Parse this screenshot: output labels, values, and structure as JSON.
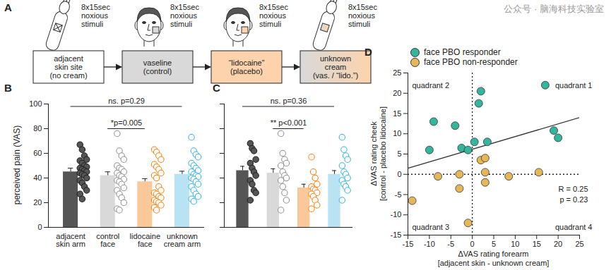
{
  "watermark": "公众号 · 脑海科技实验室",
  "diagram": {
    "panel": "A",
    "steps": [
      {
        "stimulus": "8x15sec\nnoxious\nstimuli",
        "label": "adjacent\nskin site\n(no cream)",
        "icon": "arm",
        "color": "#ffffff"
      },
      {
        "stimulus": "8x15sec\nnoxious\nstimuli",
        "label": "vaseline\n(control)",
        "icon": "face",
        "color": "#d9d9d9"
      },
      {
        "stimulus": "8x15sec\nnoxious\nstimuli",
        "label": "“lidocaine”\n(placebo)",
        "icon": "face",
        "color": "#fcd3ac"
      },
      {
        "stimulus": "8x15sec\nnoxious\nstimuli",
        "label": "unknown\ncream\n(vas. / “lido.”)",
        "icon": "arm",
        "color": [
          "#d9d9d9",
          "#fcd3ac"
        ]
      }
    ]
  },
  "chart_data": [
    {
      "type": "bar",
      "title": "B",
      "y_label": "perceived pain (VAS)",
      "categories": [
        "adjacent\nskin arm",
        "control\nface",
        "lidocaine\nface",
        "unknown\ncream arm"
      ],
      "values": [
        45,
        42,
        37,
        43
      ],
      "errors": [
        3,
        3,
        2.5,
        2.5
      ],
      "points": [
        [
          67,
          63,
          58,
          55,
          54,
          52,
          50,
          49,
          48,
          47,
          46,
          45,
          44,
          43,
          42,
          40,
          38,
          36,
          33,
          30,
          27,
          23
        ],
        [
          76,
          62,
          58,
          55,
          50,
          48,
          47,
          45,
          44,
          42,
          41,
          39,
          38,
          37,
          35,
          32,
          30,
          27,
          24,
          20,
          15,
          14
        ],
        [
          63,
          61,
          58,
          55,
          51,
          49,
          47,
          44,
          42,
          40,
          33,
          30,
          28,
          27,
          25,
          24,
          22,
          21,
          20,
          18,
          16,
          14
        ],
        [
          73,
          62,
          59,
          57,
          52,
          50,
          48,
          46,
          45,
          43,
          42,
          41,
          40,
          39,
          37,
          35,
          33,
          30,
          27,
          25,
          23,
          21
        ]
      ],
      "colors": [
        "#555555",
        "#d9d9d9",
        "#fbc89a",
        "#b9e3f3"
      ],
      "ylim": [
        0,
        100
      ],
      "yticks": [
        0,
        20,
        40,
        60,
        80,
        100
      ],
      "brackets": [
        {
          "positions": [
            0,
            3
          ],
          "y": 98,
          "text": "ns. p=0.29"
        },
        {
          "positions": [
            1,
            2
          ],
          "y": 80,
          "text": "*p=0.005"
        }
      ]
    },
    {
      "type": "bar",
      "title": "C",
      "categories": [
        null,
        null,
        null,
        null
      ],
      "values": [
        46,
        44,
        32,
        43
      ],
      "errors": [
        3.5,
        3.5,
        3,
        3
      ],
      "points": [
        [
          68,
          64,
          62,
          55,
          52,
          48,
          45,
          42,
          38,
          35,
          30,
          28,
          22
        ],
        [
          76,
          60,
          55,
          52,
          50,
          45,
          42,
          40,
          38,
          33,
          28,
          22,
          14
        ],
        [
          57,
          45,
          40,
          35,
          33,
          31,
          30,
          28,
          27,
          25,
          22,
          18,
          15
        ],
        [
          73,
          63,
          58,
          55,
          50,
          45,
          43,
          40,
          38,
          35,
          33,
          30,
          22
        ]
      ],
      "colors": [
        "#555555",
        "#d9d9d9",
        "#fbc89a",
        "#b9e3f3"
      ],
      "ylim": [
        0,
        100
      ],
      "yticks": [
        0,
        20,
        40,
        60,
        80,
        100
      ],
      "tick_labels": false,
      "brackets": [
        {
          "positions": [
            0,
            3
          ],
          "y": 98,
          "text": "ns. p=0.36"
        },
        {
          "positions": [
            1,
            2
          ],
          "y": 80,
          "text": "** p<0.001"
        }
      ]
    },
    {
      "type": "scatter",
      "title": "D",
      "x_label": "ΔVAS rating forearm\n[adjacent skin - unknown cream]",
      "y_label": "ΔVAS rating cheek\n[control - placebo lidocaine]",
      "series": [
        {
          "name": "face PBO responder",
          "color": "#35b59b",
          "x": [
            17,
            2,
            1.5,
            -9,
            -4,
            0.5,
            3.5,
            -2.5,
            -10,
            19,
            20,
            -1
          ],
          "y": [
            22,
            20.5,
            17.5,
            13,
            12,
            8,
            8,
            6.5,
            6,
            10.8,
            9,
            6
          ]
        },
        {
          "name": "face PBO non-responder",
          "color": "#e6b75a",
          "x": [
            -14,
            -8,
            -3,
            -1,
            2,
            3,
            3,
            3,
            -3,
            8.5,
            15.5
          ],
          "y": [
            -6.5,
            -0.5,
            -3.5,
            -12,
            3.5,
            4,
            0.5,
            -2,
            0,
            -0.5,
            0.5
          ]
        }
      ],
      "xlim": [
        -15,
        25
      ],
      "xticks": [
        -15,
        -10,
        -5,
        0,
        5,
        10,
        15,
        20,
        25
      ],
      "ylim": [
        -15,
        25
      ],
      "yticks": [
        -15,
        -10,
        -5,
        0,
        5,
        10,
        15,
        20,
        25
      ],
      "trend_line": {
        "x": [
          -15,
          25
        ],
        "y": [
          1.5,
          14
        ]
      },
      "reference_lines": {
        "x": 0,
        "y": 0
      },
      "quadrant_labels": [
        "quadrant 1",
        "quadrant 2",
        "quadrant 3",
        "quadrant 4"
      ],
      "stats": [
        "R = 0.25",
        "p = 0.23"
      ],
      "legend": "top-left",
      "marker": "circle"
    }
  ]
}
